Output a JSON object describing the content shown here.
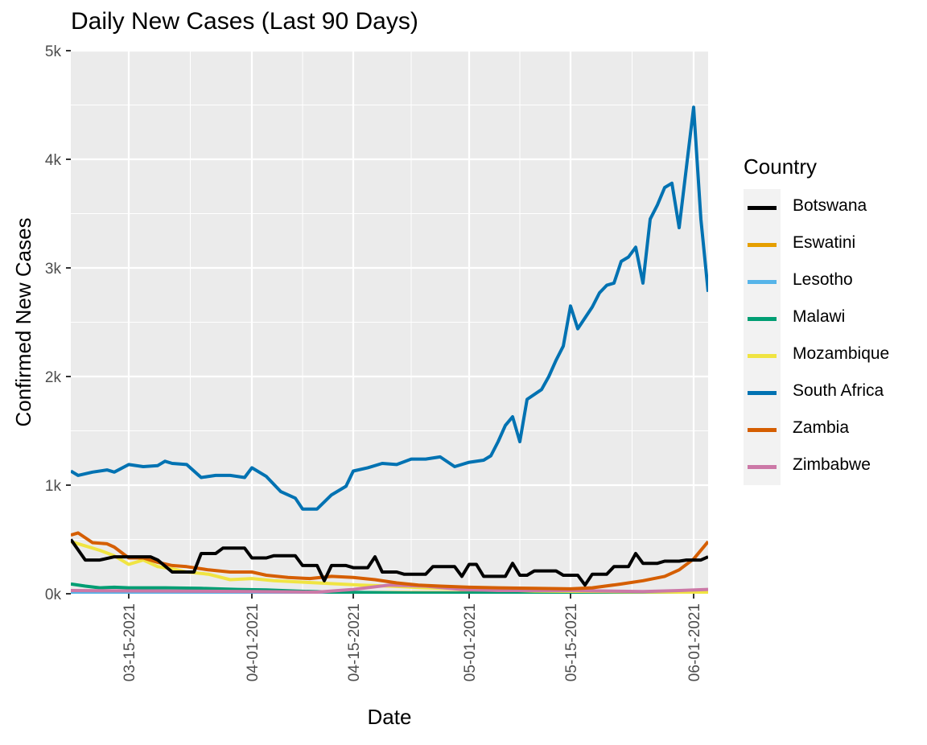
{
  "chart_data": {
    "type": "line",
    "title": "Daily New Cases (Last 90 Days)",
    "xlabel": "Date",
    "ylabel": "Confirmed New Cases",
    "legend_title": "Country",
    "legend_position": "right",
    "grid": true,
    "panel_background": "#ebebeb",
    "ylim": [
      0,
      5000
    ],
    "y_ticks": [
      0,
      1000,
      2000,
      3000,
      4000,
      5000
    ],
    "y_tick_labels": [
      "0k",
      "1k",
      "2k",
      "3k",
      "4k",
      "5k"
    ],
    "xlim": [
      "2021-03-07",
      "2021-06-03"
    ],
    "x_ticks": [
      "2021-03-15",
      "2021-04-01",
      "2021-04-15",
      "2021-05-01",
      "2021-05-15",
      "2021-06-01"
    ],
    "x_tick_labels": [
      "03-15-2021",
      "04-01-2021",
      "04-15-2021",
      "05-01-2021",
      "05-15-2021",
      "06-01-2021"
    ],
    "series": [
      {
        "name": "Botswana",
        "color": "#000000",
        "points": [
          [
            "2021-03-07",
            500
          ],
          [
            "2021-03-09",
            310
          ],
          [
            "2021-03-11",
            310
          ],
          [
            "2021-03-13",
            340
          ],
          [
            "2021-03-16",
            340
          ],
          [
            "2021-03-18",
            340
          ],
          [
            "2021-03-19",
            310
          ],
          [
            "2021-03-21",
            200
          ],
          [
            "2021-03-24",
            200
          ],
          [
            "2021-03-25",
            370
          ],
          [
            "2021-03-27",
            370
          ],
          [
            "2021-03-28",
            420
          ],
          [
            "2021-03-31",
            420
          ],
          [
            "2021-04-01",
            330
          ],
          [
            "2021-04-03",
            330
          ],
          [
            "2021-04-04",
            350
          ],
          [
            "2021-04-07",
            350
          ],
          [
            "2021-04-08",
            260
          ],
          [
            "2021-04-10",
            260
          ],
          [
            "2021-04-11",
            120
          ],
          [
            "2021-04-12",
            260
          ],
          [
            "2021-04-14",
            260
          ],
          [
            "2021-04-15",
            240
          ],
          [
            "2021-04-17",
            240
          ],
          [
            "2021-04-18",
            340
          ],
          [
            "2021-04-19",
            200
          ],
          [
            "2021-04-21",
            200
          ],
          [
            "2021-04-22",
            180
          ],
          [
            "2021-04-25",
            180
          ],
          [
            "2021-04-26",
            250
          ],
          [
            "2021-04-29",
            250
          ],
          [
            "2021-04-30",
            160
          ],
          [
            "2021-05-01",
            270
          ],
          [
            "2021-05-02",
            270
          ],
          [
            "2021-05-03",
            160
          ],
          [
            "2021-05-06",
            160
          ],
          [
            "2021-05-07",
            280
          ],
          [
            "2021-05-08",
            170
          ],
          [
            "2021-05-09",
            170
          ],
          [
            "2021-05-10",
            210
          ],
          [
            "2021-05-13",
            210
          ],
          [
            "2021-05-14",
            170
          ],
          [
            "2021-05-16",
            170
          ],
          [
            "2021-05-17",
            80
          ],
          [
            "2021-05-18",
            180
          ],
          [
            "2021-05-20",
            180
          ],
          [
            "2021-05-21",
            250
          ],
          [
            "2021-05-23",
            250
          ],
          [
            "2021-05-24",
            370
          ],
          [
            "2021-05-25",
            280
          ],
          [
            "2021-05-27",
            280
          ],
          [
            "2021-05-28",
            300
          ],
          [
            "2021-05-30",
            300
          ],
          [
            "2021-05-31",
            310
          ],
          [
            "2021-06-02",
            310
          ],
          [
            "2021-06-03",
            340
          ]
        ]
      },
      {
        "name": "Eswatini",
        "color": "#e69f00",
        "points": [
          [
            "2021-03-07",
            10
          ],
          [
            "2021-03-20",
            10
          ],
          [
            "2021-04-01",
            8
          ],
          [
            "2021-04-15",
            10
          ],
          [
            "2021-05-01",
            10
          ],
          [
            "2021-05-15",
            8
          ],
          [
            "2021-05-25",
            15
          ],
          [
            "2021-06-03",
            25
          ]
        ]
      },
      {
        "name": "Lesotho",
        "color": "#56b4e9",
        "points": [
          [
            "2021-03-07",
            5
          ],
          [
            "2021-04-01",
            5
          ],
          [
            "2021-05-01",
            5
          ],
          [
            "2021-06-03",
            5
          ]
        ]
      },
      {
        "name": "Malawi",
        "color": "#009e73",
        "points": [
          [
            "2021-03-07",
            90
          ],
          [
            "2021-03-09",
            70
          ],
          [
            "2021-03-11",
            55
          ],
          [
            "2021-03-13",
            60
          ],
          [
            "2021-03-15",
            55
          ],
          [
            "2021-03-20",
            55
          ],
          [
            "2021-03-25",
            50
          ],
          [
            "2021-03-30",
            40
          ],
          [
            "2021-04-03",
            35
          ],
          [
            "2021-04-07",
            25
          ],
          [
            "2021-04-12",
            15
          ],
          [
            "2021-04-18",
            10
          ],
          [
            "2021-04-25",
            5
          ],
          [
            "2021-05-10",
            5
          ],
          [
            "2021-05-25",
            5
          ],
          [
            "2021-06-03",
            5
          ]
        ]
      },
      {
        "name": "Mozambique",
        "color": "#f0e442",
        "points": [
          [
            "2021-03-07",
            480
          ],
          [
            "2021-03-09",
            440
          ],
          [
            "2021-03-11",
            400
          ],
          [
            "2021-03-13",
            350
          ],
          [
            "2021-03-15",
            270
          ],
          [
            "2021-03-17",
            310
          ],
          [
            "2021-03-19",
            250
          ],
          [
            "2021-03-21",
            230
          ],
          [
            "2021-03-23",
            200
          ],
          [
            "2021-03-26",
            180
          ],
          [
            "2021-03-29",
            130
          ],
          [
            "2021-04-01",
            140
          ],
          [
            "2021-04-04",
            120
          ],
          [
            "2021-04-07",
            110
          ],
          [
            "2021-04-10",
            100
          ],
          [
            "2021-04-13",
            90
          ],
          [
            "2021-04-16",
            80
          ],
          [
            "2021-04-20",
            70
          ],
          [
            "2021-04-25",
            55
          ],
          [
            "2021-04-30",
            45
          ],
          [
            "2021-05-05",
            35
          ],
          [
            "2021-05-10",
            25
          ],
          [
            "2021-05-20",
            20
          ],
          [
            "2021-05-30",
            15
          ],
          [
            "2021-06-03",
            15
          ]
        ]
      },
      {
        "name": "South Africa",
        "color": "#0072b2",
        "points": [
          [
            "2021-03-07",
            1130
          ],
          [
            "2021-03-08",
            1090
          ],
          [
            "2021-03-10",
            1120
          ],
          [
            "2021-03-12",
            1140
          ],
          [
            "2021-03-13",
            1120
          ],
          [
            "2021-03-15",
            1190
          ],
          [
            "2021-03-17",
            1170
          ],
          [
            "2021-03-19",
            1180
          ],
          [
            "2021-03-20",
            1220
          ],
          [
            "2021-03-21",
            1200
          ],
          [
            "2021-03-23",
            1190
          ],
          [
            "2021-03-25",
            1070
          ],
          [
            "2021-03-27",
            1090
          ],
          [
            "2021-03-29",
            1090
          ],
          [
            "2021-03-31",
            1070
          ],
          [
            "2021-04-01",
            1160
          ],
          [
            "2021-04-03",
            1080
          ],
          [
            "2021-04-05",
            940
          ],
          [
            "2021-04-07",
            880
          ],
          [
            "2021-04-08",
            780
          ],
          [
            "2021-04-10",
            780
          ],
          [
            "2021-04-12",
            910
          ],
          [
            "2021-04-14",
            990
          ],
          [
            "2021-04-15",
            1130
          ],
          [
            "2021-04-17",
            1160
          ],
          [
            "2021-04-19",
            1200
          ],
          [
            "2021-04-21",
            1190
          ],
          [
            "2021-04-23",
            1240
          ],
          [
            "2021-04-25",
            1240
          ],
          [
            "2021-04-27",
            1260
          ],
          [
            "2021-04-29",
            1170
          ],
          [
            "2021-05-01",
            1210
          ],
          [
            "2021-05-03",
            1230
          ],
          [
            "2021-05-04",
            1270
          ],
          [
            "2021-05-05",
            1400
          ],
          [
            "2021-05-06",
            1550
          ],
          [
            "2021-05-07",
            1630
          ],
          [
            "2021-05-08",
            1400
          ],
          [
            "2021-05-09",
            1790
          ],
          [
            "2021-05-11",
            1880
          ],
          [
            "2021-05-12",
            2000
          ],
          [
            "2021-05-13",
            2150
          ],
          [
            "2021-05-14",
            2280
          ],
          [
            "2021-05-15",
            2650
          ],
          [
            "2021-05-16",
            2440
          ],
          [
            "2021-05-18",
            2640
          ],
          [
            "2021-05-19",
            2770
          ],
          [
            "2021-05-20",
            2840
          ],
          [
            "2021-05-21",
            2860
          ],
          [
            "2021-05-22",
            3060
          ],
          [
            "2021-05-23",
            3100
          ],
          [
            "2021-05-24",
            3190
          ],
          [
            "2021-05-25",
            2860
          ],
          [
            "2021-05-26",
            3450
          ],
          [
            "2021-05-27",
            3580
          ],
          [
            "2021-05-28",
            3740
          ],
          [
            "2021-05-29",
            3780
          ],
          [
            "2021-05-30",
            3370
          ],
          [
            "2021-06-01",
            4480
          ],
          [
            "2021-06-02",
            3450
          ],
          [
            "2021-06-03",
            2780
          ]
        ]
      },
      {
        "name": "Zambia",
        "color": "#d55e00",
        "points": [
          [
            "2021-03-07",
            540
          ],
          [
            "2021-03-08",
            560
          ],
          [
            "2021-03-10",
            470
          ],
          [
            "2021-03-12",
            460
          ],
          [
            "2021-03-13",
            430
          ],
          [
            "2021-03-15",
            330
          ],
          [
            "2021-03-17",
            330
          ],
          [
            "2021-03-19",
            290
          ],
          [
            "2021-03-21",
            260
          ],
          [
            "2021-03-23",
            250
          ],
          [
            "2021-03-26",
            220
          ],
          [
            "2021-03-29",
            200
          ],
          [
            "2021-04-01",
            200
          ],
          [
            "2021-04-03",
            170
          ],
          [
            "2021-04-06",
            150
          ],
          [
            "2021-04-09",
            140
          ],
          [
            "2021-04-12",
            160
          ],
          [
            "2021-04-15",
            150
          ],
          [
            "2021-04-18",
            130
          ],
          [
            "2021-04-21",
            100
          ],
          [
            "2021-04-24",
            80
          ],
          [
            "2021-04-27",
            70
          ],
          [
            "2021-05-01",
            60
          ],
          [
            "2021-05-05",
            55
          ],
          [
            "2021-05-10",
            50
          ],
          [
            "2021-05-15",
            45
          ],
          [
            "2021-05-18",
            55
          ],
          [
            "2021-05-22",
            90
          ],
          [
            "2021-05-25",
            120
          ],
          [
            "2021-05-28",
            160
          ],
          [
            "2021-05-30",
            220
          ],
          [
            "2021-06-01",
            320
          ],
          [
            "2021-06-03",
            480
          ]
        ]
      },
      {
        "name": "Zimbabwe",
        "color": "#cc79a7",
        "points": [
          [
            "2021-03-07",
            30
          ],
          [
            "2021-03-20",
            25
          ],
          [
            "2021-04-01",
            20
          ],
          [
            "2021-04-10",
            15
          ],
          [
            "2021-04-15",
            40
          ],
          [
            "2021-04-20",
            80
          ],
          [
            "2021-04-25",
            70
          ],
          [
            "2021-04-30",
            40
          ],
          [
            "2021-05-05",
            30
          ],
          [
            "2021-05-15",
            30
          ],
          [
            "2021-05-25",
            20
          ],
          [
            "2021-05-30",
            30
          ],
          [
            "2021-06-03",
            40
          ]
        ]
      }
    ]
  }
}
